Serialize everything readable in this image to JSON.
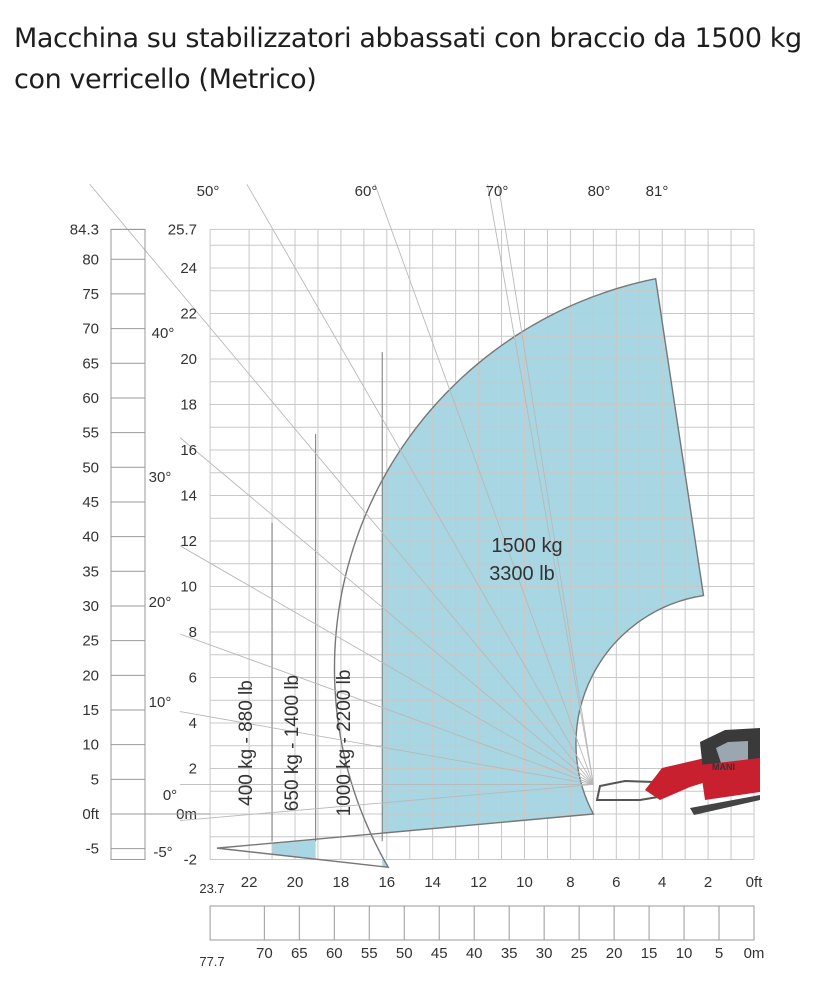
{
  "title": "Macchina su stabilizzatori abbassati con braccio da 1500 kg con verricello (Metrico)",
  "colors": {
    "zone_fill": "#a8d6e2",
    "zone_edge": "#777777",
    "grid": "#c8c8c8",
    "ray": "#b9b9b9",
    "text": "#333333",
    "machine": "#c8202f"
  },
  "chart_data": {
    "type": "load-chart",
    "title": "Macchina su stabilizzatori abbassati con braccio da 1500 kg con verricello (Metrico)",
    "x_axis_m": {
      "range": [
        23.7,
        0
      ],
      "ticks": [
        "22",
        "20",
        "18",
        "16",
        "14",
        "12",
        "10",
        "8",
        "6",
        "4",
        "2",
        "0ft"
      ],
      "tick_values": [
        22,
        20,
        18,
        16,
        14,
        12,
        10,
        8,
        6,
        4,
        2,
        0
      ],
      "end_label": "23.7"
    },
    "x_axis_ft": {
      "ticks": [
        "70",
        "65",
        "60",
        "55",
        "50",
        "45",
        "40",
        "35",
        "30",
        "25",
        "20",
        "15",
        "10",
        "5",
        "0m"
      ],
      "tick_values": [
        70,
        65,
        60,
        55,
        50,
        45,
        40,
        35,
        30,
        25,
        20,
        15,
        10,
        5,
        0
      ],
      "end_label": "77.7"
    },
    "y_axis_m": {
      "range": [
        -2,
        25.7
      ],
      "ticks": [
        "25.7",
        "24",
        "22",
        "20",
        "18",
        "16",
        "14",
        "12",
        "10",
        "8",
        "6",
        "4",
        "2",
        "0m",
        "-2"
      ],
      "tick_values": [
        25.7,
        24,
        22,
        20,
        18,
        16,
        14,
        12,
        10,
        8,
        6,
        4,
        2,
        0,
        -2
      ]
    },
    "y_axis_ft": {
      "ticks": [
        "84.3",
        "80",
        "75",
        "70",
        "65",
        "60",
        "55",
        "50",
        "45",
        "40",
        "35",
        "30",
        "25",
        "20",
        "15",
        "10",
        "5",
        "0ft",
        "-5"
      ],
      "tick_values": [
        84.3,
        80,
        75,
        70,
        65,
        60,
        55,
        50,
        45,
        40,
        35,
        30,
        25,
        20,
        15,
        10,
        5,
        0,
        -5
      ]
    },
    "boom_angles": [
      {
        "label": "-5°",
        "deg": -5
      },
      {
        "label": "0°",
        "deg": 0
      },
      {
        "label": "10°",
        "deg": 10
      },
      {
        "label": "20°",
        "deg": 20
      },
      {
        "label": "30°",
        "deg": 30
      },
      {
        "label": "40°",
        "deg": 40
      },
      {
        "label": "50°",
        "deg": 50
      },
      {
        "label": "60°",
        "deg": 60
      },
      {
        "label": "70°",
        "deg": 70
      },
      {
        "label": "80°",
        "deg": 80
      },
      {
        "label": "81°",
        "deg": 81
      }
    ],
    "load_zones": [
      {
        "name": "400 kg - 880 lb",
        "kg": 400,
        "lb": 880,
        "reach_from_m": 23.7,
        "reach_to_m": 21.0,
        "shaded": false
      },
      {
        "name": "650 kg - 1400 lb",
        "kg": 650,
        "lb": 1400,
        "reach_from_m": 21.0,
        "reach_to_m": 19.1,
        "shaded": true
      },
      {
        "name": "1000 kg - 2200 lb",
        "kg": 1000,
        "lb": 2200,
        "reach_from_m": 19.1,
        "reach_to_m": 16.2,
        "shaded": false
      },
      {
        "name": "1500 kg 3300 lb",
        "kg": 1500,
        "lb": 3300,
        "reach_from_m": 16.2,
        "reach_to_m": 2.2,
        "shaded": true
      }
    ],
    "main_load_label": [
      "1500 kg",
      "3300 lb"
    ],
    "grid": true
  }
}
